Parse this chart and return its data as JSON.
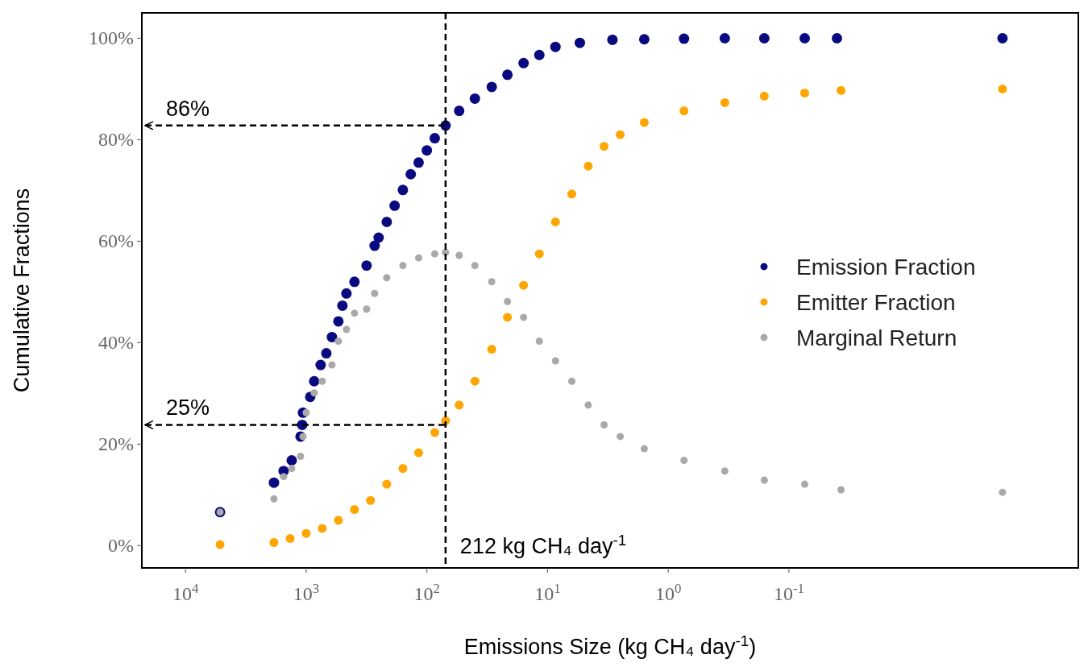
{
  "chart_data": {
    "type": "scatter",
    "xlabel": "Emissions Size (kg CH₄ day$^{-1}$)",
    "ylabel": "Cumulative Fractions",
    "log": "x",
    "xlim": [
      23000,
      0.0004
    ],
    "ylim": [
      -4.4,
      105
    ],
    "xticks": [
      {
        "value": 10000,
        "label": "10$^{4}$"
      },
      {
        "value": 1000,
        "label": "10$^{3}$"
      },
      {
        "value": 100,
        "label": "10$^{2}$"
      },
      {
        "value": 10,
        "label": "10$^{1}$"
      },
      {
        "value": 1,
        "label": "10$^{0}$"
      },
      {
        "value": 0.1,
        "label": "10$^{-1}$"
      }
    ],
    "yticks": [
      {
        "value": 0,
        "label": "0%"
      },
      {
        "value": 20,
        "label": "20%"
      },
      {
        "value": 40,
        "label": "40%"
      },
      {
        "value": 60,
        "label": "60%"
      },
      {
        "value": 80,
        "label": "80%"
      },
      {
        "value": 100,
        "label": "100%"
      }
    ],
    "grid": false,
    "legend": "right",
    "marker": "circle",
    "ref_lines": [
      {
        "axis": "x",
        "value": 70,
        "label": "212 kg CH₄ day$^{-1}$",
        "color": "#000000",
        "line_style": "dashed"
      },
      {
        "axis": "y",
        "value": 82.8,
        "color": "#000000",
        "line_style": "dashed"
      },
      {
        "axis": "y",
        "value": 23.8,
        "color": "#000000",
        "line_style": "dashed"
      }
    ],
    "annotations": [
      "86%",
      "25%"
    ],
    "series": [
      {
        "name": "Emission Fraction",
        "color": "#0a0a80",
        "x": [
          5170,
          1849,
          1538,
          1318,
          1114,
          1080,
          1063,
          926,
          858,
          759,
          681,
          612,
          541,
          501,
          464,
          398,
          316,
          271,
          251,
          215,
          185,
          158,
          136,
          117,
          100,
          86,
          70,
          54,
          40,
          29,
          21.5,
          15.8,
          11.7,
          8.6,
          5.4,
          2.9,
          1.58,
          0.74,
          0.34,
          0.16,
          0.074,
          0.04,
          0.0017
        ],
        "values": [
          6.6,
          12.4,
          14.7,
          16.8,
          21.5,
          23.8,
          26.2,
          29.3,
          32.4,
          35.6,
          37.9,
          41.1,
          44.2,
          47.3,
          49.7,
          52.0,
          55.2,
          59.1,
          60.7,
          63.8,
          67.0,
          70.1,
          73.2,
          75.5,
          77.9,
          80.3,
          82.8,
          85.7,
          88.1,
          90.4,
          92.8,
          95.1,
          96.7,
          98.3,
          99.1,
          99.7,
          99.8,
          99.9,
          100,
          100,
          100,
          100,
          100
        ]
      },
      {
        "name": "Emitter Fraction",
        "color": "#ffa500",
        "x": [
          5170,
          1849,
          1359,
          1000,
          736,
          541,
          398,
          293,
          215,
          158,
          117,
          86,
          70,
          54,
          40,
          29,
          21.5,
          15.8,
          11.7,
          8.6,
          6.3,
          4.6,
          3.4,
          2.5,
          1.58,
          0.74,
          0.34,
          0.16,
          0.074,
          0.037,
          0.0017
        ],
        "values": [
          0.2,
          0.6,
          1.4,
          2.4,
          3.4,
          5.0,
          7.1,
          8.9,
          12.1,
          15.2,
          18.3,
          22.3,
          24.6,
          27.7,
          32.4,
          38.7,
          45.0,
          51.3,
          57.5,
          63.8,
          69.3,
          74.8,
          78.7,
          81.0,
          83.4,
          85.7,
          87.3,
          88.6,
          89.2,
          89.7,
          90.0
        ]
      },
      {
        "name": "Marginal Return",
        "color": "#a9a9a9",
        "x": [
          5170,
          1849,
          1538,
          1318,
          1114,
          1063,
          1000,
          858,
          736,
          612,
          541,
          464,
          398,
          316,
          271,
          215,
          158,
          117,
          86,
          70,
          54,
          40,
          29,
          21.5,
          15.8,
          11.7,
          8.6,
          6.3,
          4.6,
          3.4,
          2.5,
          1.58,
          0.74,
          0.34,
          0.16,
          0.074,
          0.037,
          0.0017
        ],
        "values": [
          6.6,
          9.2,
          13.6,
          15.2,
          17.6,
          21.5,
          26.2,
          30.1,
          32.4,
          35.6,
          40.3,
          42.6,
          45.8,
          46.6,
          49.7,
          52.8,
          55.2,
          56.7,
          57.5,
          57.8,
          57.2,
          55.2,
          52.0,
          48.1,
          45.0,
          40.3,
          36.4,
          32.4,
          27.7,
          23.8,
          21.5,
          19.1,
          16.8,
          14.7,
          12.9,
          12.1,
          11.0,
          10.5
        ]
      }
    ]
  }
}
